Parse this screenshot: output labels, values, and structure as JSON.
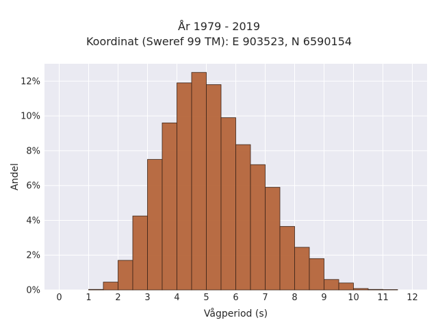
{
  "title": {
    "line1": "År 1979 - 2019",
    "line2": "Koordinat (Sweref 99 TM): E 903523, N 6590154"
  },
  "chart_data": {
    "type": "bar",
    "title": "År 1979 - 2019\nKoordinat (Sweref 99 TM): E 903523, N 6590154",
    "xlabel": "Vågperiod (s)",
    "ylabel": "Andel",
    "xlim": [
      -0.5,
      12.5
    ],
    "ylim": [
      0,
      0.13
    ],
    "x_ticks": [
      "0",
      "1",
      "2",
      "3",
      "4",
      "5",
      "6",
      "7",
      "8",
      "9",
      "10",
      "11",
      "12"
    ],
    "y_ticks": [
      "0%",
      "2%",
      "4%",
      "6%",
      "8%",
      "10%",
      "12%"
    ],
    "bin_width": 0.5,
    "bins": [
      {
        "x0": 1.0,
        "value": 0.0003
      },
      {
        "x0": 1.5,
        "value": 0.0045
      },
      {
        "x0": 2.0,
        "value": 0.017
      },
      {
        "x0": 2.5,
        "value": 0.0425
      },
      {
        "x0": 3.0,
        "value": 0.075
      },
      {
        "x0": 3.5,
        "value": 0.096
      },
      {
        "x0": 4.0,
        "value": 0.119
      },
      {
        "x0": 4.5,
        "value": 0.125
      },
      {
        "x0": 5.0,
        "value": 0.118
      },
      {
        "x0": 5.5,
        "value": 0.099
      },
      {
        "x0": 6.0,
        "value": 0.0835
      },
      {
        "x0": 6.5,
        "value": 0.072
      },
      {
        "x0": 7.0,
        "value": 0.059
      },
      {
        "x0": 7.5,
        "value": 0.0365
      },
      {
        "x0": 8.0,
        "value": 0.0245
      },
      {
        "x0": 8.5,
        "value": 0.018
      },
      {
        "x0": 9.0,
        "value": 0.006
      },
      {
        "x0": 9.5,
        "value": 0.004
      },
      {
        "x0": 10.0,
        "value": 0.0008
      },
      {
        "x0": 10.5,
        "value": 0.0003
      },
      {
        "x0": 11.0,
        "value": 0.0002
      }
    ],
    "grid": true,
    "colors": {
      "bar_fill": "#b5653a",
      "bar_edge": "#3a2418",
      "plot_background": "#eaeaf2",
      "grid": "#ffffff"
    }
  }
}
